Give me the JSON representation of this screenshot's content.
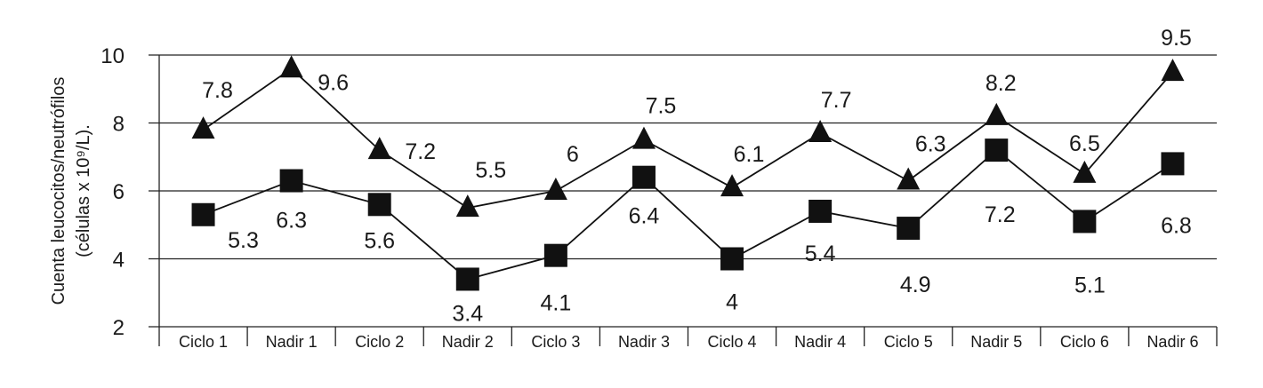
{
  "chart_data": {
    "type": "line",
    "title": "",
    "xlabel": "",
    "ylabel_lines": [
      "Cuenta leucocitos/neutrófilos",
      "(células x 10⁹/L)."
    ],
    "ylim": [
      2,
      10
    ],
    "yticks": [
      2,
      4,
      6,
      8,
      10
    ],
    "grid": "horizontal",
    "categories": [
      "Ciclo 1",
      "Nadir 1",
      "Ciclo 2",
      "Nadir 2",
      "Ciclo 3",
      "Nadir 3",
      "Ciclo 4",
      "Nadir 4",
      "Ciclo 5",
      "Nadir 5",
      "Ciclo 6",
      "Nadir 6"
    ],
    "series": [
      {
        "marker": "triangle",
        "color": "#111111",
        "values": [
          7.8,
          9.6,
          7.2,
          5.5,
          6,
          7.5,
          6.1,
          7.7,
          6.3,
          8.2,
          6.5,
          9.5
        ],
        "labels": [
          "7.8",
          "9.6",
          "7.2",
          "5.5",
          "6",
          "7.5",
          "6.1",
          "7.7",
          "6.3",
          "8.2",
          "6.5",
          "9.5"
        ]
      },
      {
        "marker": "square",
        "color": "#111111",
        "values": [
          5.3,
          6.3,
          5.6,
          3.4,
          4.1,
          6.4,
          4,
          5.4,
          4.9,
          7.2,
          5.1,
          6.8
        ],
        "labels": [
          "5.3",
          "6.3",
          "5.6",
          "3.4",
          "4.1",
          "6.4",
          "4",
          "5.4",
          "4.9",
          "7.2",
          "5.1",
          "6.8"
        ]
      }
    ]
  }
}
